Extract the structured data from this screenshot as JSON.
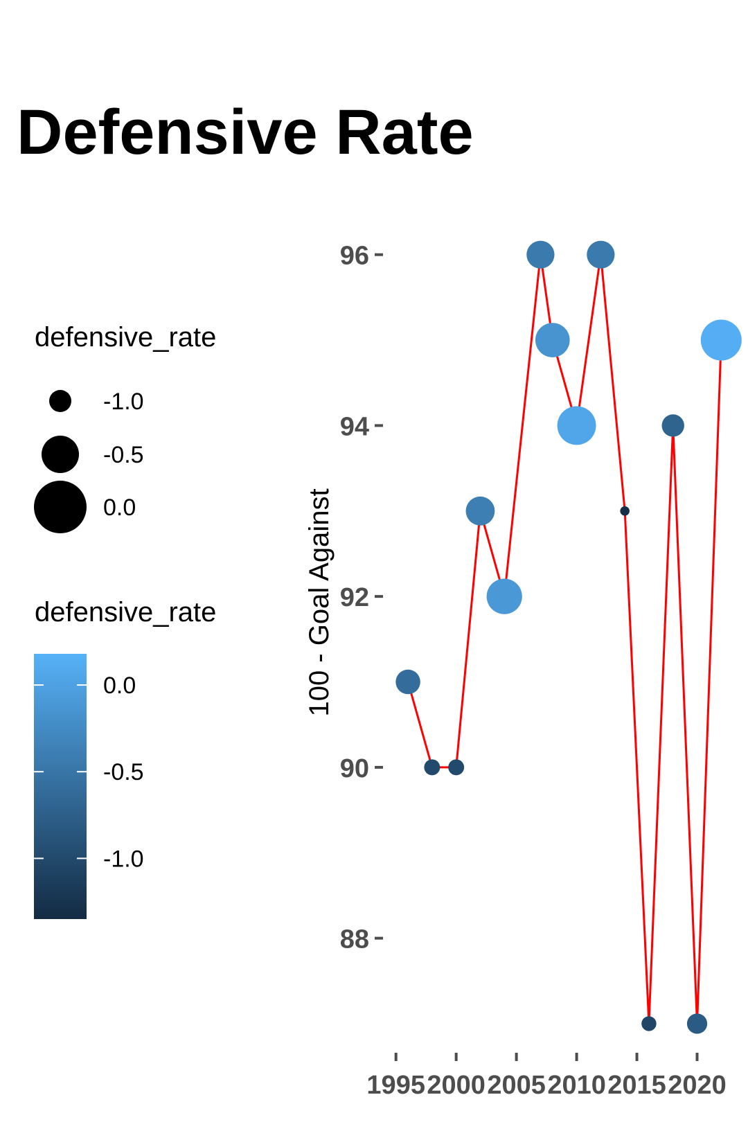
{
  "chart_data": {
    "type": "line",
    "title": "Defensive Rate",
    "xlabel": "",
    "ylabel": "100 - Goal Against",
    "x_ticks": [
      1995,
      2000,
      2005,
      2010,
      2015,
      2020
    ],
    "y_ticks": [
      88,
      90,
      92,
      94,
      96
    ],
    "xlim": [
      1994.5,
      2022.5
    ],
    "ylim": [
      86.7,
      96.5
    ],
    "grid": false,
    "line_color": "#ff0000",
    "points": [
      {
        "x": 1996,
        "y": 91,
        "defensive_rate": -0.6
      },
      {
        "x": 1998,
        "y": 90,
        "defensive_rate": -1.0
      },
      {
        "x": 2000,
        "y": 90,
        "defensive_rate": -1.0
      },
      {
        "x": 2002,
        "y": 93,
        "defensive_rate": -0.4
      },
      {
        "x": 2004,
        "y": 92,
        "defensive_rate": -0.1
      },
      {
        "x": 2007,
        "y": 96,
        "defensive_rate": -0.45
      },
      {
        "x": 2008,
        "y": 95,
        "defensive_rate": -0.15
      },
      {
        "x": 2010,
        "y": 94,
        "defensive_rate": 0.05
      },
      {
        "x": 2012,
        "y": 96,
        "defensive_rate": -0.45
      },
      {
        "x": 2014,
        "y": 93,
        "defensive_rate": -1.3
      },
      {
        "x": 2016,
        "y": 87,
        "defensive_rate": -1.05
      },
      {
        "x": 2018,
        "y": 94,
        "defensive_rate": -0.7
      },
      {
        "x": 2020,
        "y": 87,
        "defensive_rate": -0.8
      },
      {
        "x": 2022,
        "y": 95,
        "defensive_rate": 0.15
      }
    ],
    "legends": [
      {
        "kind": "size",
        "title": "defensive_rate",
        "entries": [
          {
            "label": "-1.0",
            "value": -1.0
          },
          {
            "label": "-0.5",
            "value": -0.5
          },
          {
            "label": "0.0",
            "value": 0.0
          }
        ],
        "placement": "left"
      },
      {
        "kind": "color",
        "title": "defensive_rate",
        "ticks": [
          {
            "label": "0.0",
            "value": 0.0
          },
          {
            "label": "-0.5",
            "value": -0.5
          },
          {
            "label": "-1.0",
            "value": -1.0
          }
        ],
        "range": [
          -1.35,
          0.18
        ],
        "color_low": "#132b43",
        "color_high": "#56b1f7",
        "placement": "left"
      }
    ]
  }
}
